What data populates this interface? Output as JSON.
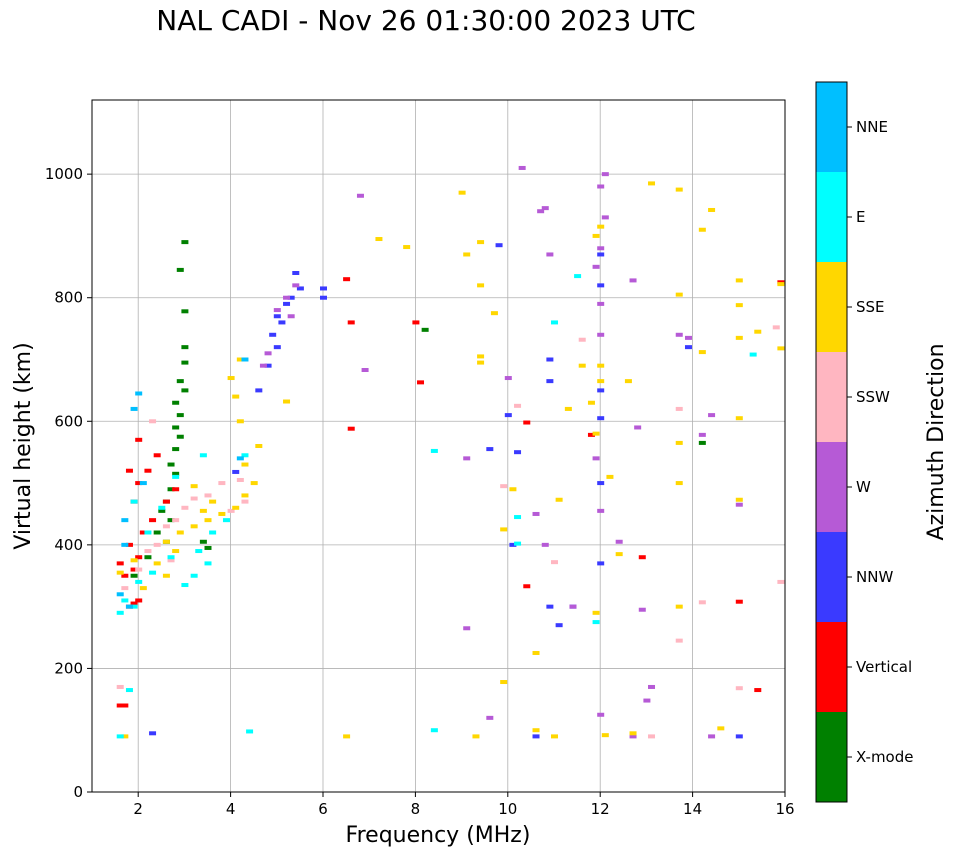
{
  "chart_data": {
    "type": "scatter",
    "title": "NAL CADI - Nov 26 01:30:00 2023 UTC",
    "xlabel": "Frequency (MHz)",
    "ylabel": "Virtual height (km)",
    "xlim": [
      1,
      16
    ],
    "ylim": [
      0,
      1120
    ],
    "xticks": [
      2,
      4,
      6,
      8,
      10,
      12,
      14,
      16
    ],
    "yticks": [
      0,
      200,
      400,
      600,
      800,
      1000
    ],
    "grid": true,
    "colorbar": {
      "label": "Azimuth Direction",
      "categories": [
        {
          "name": "X-mode",
          "color": "#008000"
        },
        {
          "name": "Vertical",
          "color": "#ff0000"
        },
        {
          "name": "NNW",
          "color": "#3a3aff"
        },
        {
          "name": "W",
          "color": "#b65ad6"
        },
        {
          "name": "SSW",
          "color": "#ffb6c1"
        },
        {
          "name": "SSE",
          "color": "#ffd700"
        },
        {
          "name": "E",
          "color": "#00ffff"
        },
        {
          "name": "NNE",
          "color": "#00bfff"
        }
      ]
    },
    "series": [
      {
        "name": "X-mode",
        "points": [
          [
            3.0,
            890
          ],
          [
            2.9,
            845
          ],
          [
            3.0,
            778
          ],
          [
            3.0,
            720
          ],
          [
            3.0,
            695
          ],
          [
            2.9,
            665
          ],
          [
            3.0,
            650
          ],
          [
            2.8,
            630
          ],
          [
            2.9,
            610
          ],
          [
            2.8,
            590
          ],
          [
            2.9,
            575
          ],
          [
            2.8,
            555
          ],
          [
            2.7,
            530
          ],
          [
            2.8,
            515
          ],
          [
            2.7,
            490
          ],
          [
            2.6,
            470
          ],
          [
            2.5,
            455
          ],
          [
            2.7,
            440
          ],
          [
            2.4,
            420
          ],
          [
            2.6,
            405
          ],
          [
            3.4,
            405
          ],
          [
            3.5,
            395
          ],
          [
            8.2,
            748
          ],
          [
            2.2,
            380
          ],
          [
            1.9,
            350
          ],
          [
            14.2,
            565
          ]
        ]
      },
      {
        "name": "Vertical",
        "points": [
          [
            1.6,
            140
          ],
          [
            1.7,
            140
          ],
          [
            1.8,
            300
          ],
          [
            1.9,
            305
          ],
          [
            2.0,
            310
          ],
          [
            1.7,
            350
          ],
          [
            1.9,
            360
          ],
          [
            1.6,
            370
          ],
          [
            2.0,
            380
          ],
          [
            1.8,
            400
          ],
          [
            2.1,
            420
          ],
          [
            2.3,
            440
          ],
          [
            1.9,
            470
          ],
          [
            2.0,
            500
          ],
          [
            2.2,
            520
          ],
          [
            2.4,
            545
          ],
          [
            2.6,
            470
          ],
          [
            2.8,
            490
          ],
          [
            1.8,
            520
          ],
          [
            2.0,
            570
          ],
          [
            6.5,
            830
          ],
          [
            6.6,
            760
          ],
          [
            6.6,
            588
          ],
          [
            8.0,
            760
          ],
          [
            10.4,
            598
          ],
          [
            10.4,
            333
          ],
          [
            11.8,
            578
          ],
          [
            15.0,
            308
          ],
          [
            15.4,
            165
          ],
          [
            15.9,
            825
          ],
          [
            8.1,
            663
          ],
          [
            12.9,
            380
          ]
        ]
      },
      {
        "name": "NNW",
        "points": [
          [
            2.3,
            95
          ],
          [
            4.1,
            518
          ],
          [
            4.6,
            650
          ],
          [
            4.8,
            690
          ],
          [
            5.0,
            720
          ],
          [
            5.0,
            770
          ],
          [
            5.2,
            790
          ],
          [
            5.3,
            800
          ],
          [
            5.5,
            815
          ],
          [
            5.4,
            840
          ],
          [
            5.1,
            760
          ],
          [
            4.9,
            740
          ],
          [
            6.0,
            800
          ],
          [
            6.0,
            815
          ],
          [
            9.8,
            885
          ],
          [
            9.6,
            555
          ],
          [
            10.0,
            610
          ],
          [
            10.1,
            400
          ],
          [
            10.2,
            550
          ],
          [
            10.6,
            90
          ],
          [
            10.9,
            665
          ],
          [
            10.9,
            700
          ],
          [
            10.9,
            300
          ],
          [
            11.1,
            270
          ],
          [
            11.4,
            300
          ],
          [
            12.0,
            370
          ],
          [
            12.0,
            605
          ],
          [
            12.0,
            650
          ],
          [
            12.0,
            500
          ],
          [
            12.0,
            820
          ],
          [
            12.0,
            870
          ],
          [
            13.9,
            720
          ],
          [
            15.0,
            90
          ]
        ]
      },
      {
        "name": "W",
        "points": [
          [
            4.7,
            690
          ],
          [
            4.8,
            710
          ],
          [
            5.0,
            780
          ],
          [
            5.2,
            800
          ],
          [
            5.3,
            770
          ],
          [
            5.4,
            820
          ],
          [
            6.8,
            965
          ],
          [
            6.9,
            683
          ],
          [
            9.1,
            540
          ],
          [
            9.1,
            265
          ],
          [
            9.6,
            120
          ],
          [
            10.0,
            670
          ],
          [
            10.3,
            1010
          ],
          [
            10.7,
            940
          ],
          [
            10.8,
            945
          ],
          [
            10.9,
            870
          ],
          [
            10.6,
            450
          ],
          [
            10.8,
            400
          ],
          [
            11.4,
            300
          ],
          [
            11.9,
            540
          ],
          [
            11.9,
            850
          ],
          [
            12.0,
            980
          ],
          [
            12.0,
            880
          ],
          [
            12.0,
            790
          ],
          [
            12.0,
            740
          ],
          [
            12.0,
            455
          ],
          [
            12.0,
            125
          ],
          [
            12.4,
            405
          ],
          [
            12.7,
            828
          ],
          [
            12.8,
            590
          ],
          [
            12.9,
            295
          ],
          [
            13.0,
            148
          ],
          [
            13.1,
            170
          ],
          [
            13.7,
            740
          ],
          [
            13.9,
            735
          ],
          [
            14.2,
            578
          ],
          [
            14.4,
            610
          ],
          [
            14.4,
            90
          ],
          [
            15.0,
            465
          ],
          [
            12.1,
            1000
          ],
          [
            12.7,
            90
          ],
          [
            12.1,
            930
          ]
        ]
      },
      {
        "name": "SSW",
        "points": [
          [
            1.6,
            170
          ],
          [
            1.7,
            330
          ],
          [
            2.0,
            360
          ],
          [
            2.2,
            390
          ],
          [
            2.4,
            400
          ],
          [
            2.6,
            430
          ],
          [
            2.8,
            440
          ],
          [
            3.0,
            460
          ],
          [
            3.2,
            475
          ],
          [
            3.5,
            480
          ],
          [
            3.8,
            500
          ],
          [
            4.2,
            505
          ],
          [
            4.3,
            470
          ],
          [
            4.0,
            455
          ],
          [
            2.7,
            375
          ],
          [
            2.3,
            600
          ],
          [
            10.2,
            625
          ],
          [
            11.0,
            372
          ],
          [
            11.6,
            732
          ],
          [
            13.1,
            90
          ],
          [
            13.7,
            620
          ],
          [
            13.7,
            245
          ],
          [
            14.2,
            307
          ],
          [
            15.0,
            168
          ],
          [
            15.8,
            752
          ],
          [
            15.9,
            340
          ],
          [
            9.9,
            495
          ]
        ]
      },
      {
        "name": "SSE",
        "points": [
          [
            2.1,
            330
          ],
          [
            2.4,
            370
          ],
          [
            2.6,
            405
          ],
          [
            2.9,
            420
          ],
          [
            3.2,
            430
          ],
          [
            3.5,
            440
          ],
          [
            3.8,
            450
          ],
          [
            4.1,
            460
          ],
          [
            4.3,
            480
          ],
          [
            4.5,
            500
          ],
          [
            4.3,
            530
          ],
          [
            4.6,
            560
          ],
          [
            4.2,
            600
          ],
          [
            4.1,
            640
          ],
          [
            4.0,
            670
          ],
          [
            4.2,
            700
          ],
          [
            3.6,
            470
          ],
          [
            3.4,
            455
          ],
          [
            3.2,
            495
          ],
          [
            2.8,
            390
          ],
          [
            2.6,
            350
          ],
          [
            1.7,
            90
          ],
          [
            1.6,
            355
          ],
          [
            1.9,
            375
          ],
          [
            5.2,
            632
          ],
          [
            6.5,
            90
          ],
          [
            7.2,
            895
          ],
          [
            7.8,
            882
          ],
          [
            9.0,
            970
          ],
          [
            9.1,
            870
          ],
          [
            9.3,
            90
          ],
          [
            9.4,
            890
          ],
          [
            9.4,
            820
          ],
          [
            9.4,
            705
          ],
          [
            9.4,
            695
          ],
          [
            9.7,
            775
          ],
          [
            9.9,
            178
          ],
          [
            9.9,
            425
          ],
          [
            10.1,
            490
          ],
          [
            10.6,
            225
          ],
          [
            10.6,
            100
          ],
          [
            11.0,
            90
          ],
          [
            11.3,
            620
          ],
          [
            11.6,
            690
          ],
          [
            11.8,
            630
          ],
          [
            11.9,
            900
          ],
          [
            11.9,
            580
          ],
          [
            11.9,
            290
          ],
          [
            12.0,
            915
          ],
          [
            12.0,
            690
          ],
          [
            12.0,
            665
          ],
          [
            12.1,
            92
          ],
          [
            12.2,
            510
          ],
          [
            12.4,
            385
          ],
          [
            12.6,
            665
          ],
          [
            12.7,
            95
          ],
          [
            13.1,
            985
          ],
          [
            13.7,
            975
          ],
          [
            13.7,
            805
          ],
          [
            13.7,
            565
          ],
          [
            13.7,
            500
          ],
          [
            13.7,
            300
          ],
          [
            14.2,
            910
          ],
          [
            14.2,
            712
          ],
          [
            14.4,
            942
          ],
          [
            14.6,
            103
          ],
          [
            15.0,
            828
          ],
          [
            15.0,
            788
          ],
          [
            15.0,
            735
          ],
          [
            15.0,
            605
          ],
          [
            15.0,
            473
          ],
          [
            15.4,
            745
          ],
          [
            15.9,
            718
          ],
          [
            15.9,
            822
          ],
          [
            11.1,
            473
          ]
        ]
      },
      {
        "name": "E",
        "points": [
          [
            1.6,
            290
          ],
          [
            1.7,
            310
          ],
          [
            1.9,
            300
          ],
          [
            2.0,
            340
          ],
          [
            2.3,
            355
          ],
          [
            2.7,
            380
          ],
          [
            3.0,
            335
          ],
          [
            3.2,
            350
          ],
          [
            3.5,
            370
          ],
          [
            3.3,
            390
          ],
          [
            3.6,
            420
          ],
          [
            3.9,
            440
          ],
          [
            2.2,
            420
          ],
          [
            1.9,
            470
          ],
          [
            1.8,
            165
          ],
          [
            1.6,
            90
          ],
          [
            4.4,
            98
          ],
          [
            2.8,
            510
          ],
          [
            3.4,
            545
          ],
          [
            2.5,
            460
          ],
          [
            4.3,
            545
          ],
          [
            8.4,
            552
          ],
          [
            8.4,
            100
          ],
          [
            10.2,
            445
          ],
          [
            10.2,
            402
          ],
          [
            11.0,
            760
          ],
          [
            11.5,
            835
          ],
          [
            11.9,
            275
          ],
          [
            15.3,
            708
          ]
        ]
      },
      {
        "name": "NNE",
        "points": [
          [
            1.7,
            400
          ],
          [
            2.0,
            645
          ],
          [
            1.9,
            620
          ],
          [
            1.7,
            440
          ],
          [
            1.8,
            300
          ],
          [
            2.1,
            500
          ],
          [
            1.6,
            320
          ],
          [
            4.2,
            540
          ],
          [
            4.3,
            700
          ]
        ]
      }
    ]
  }
}
